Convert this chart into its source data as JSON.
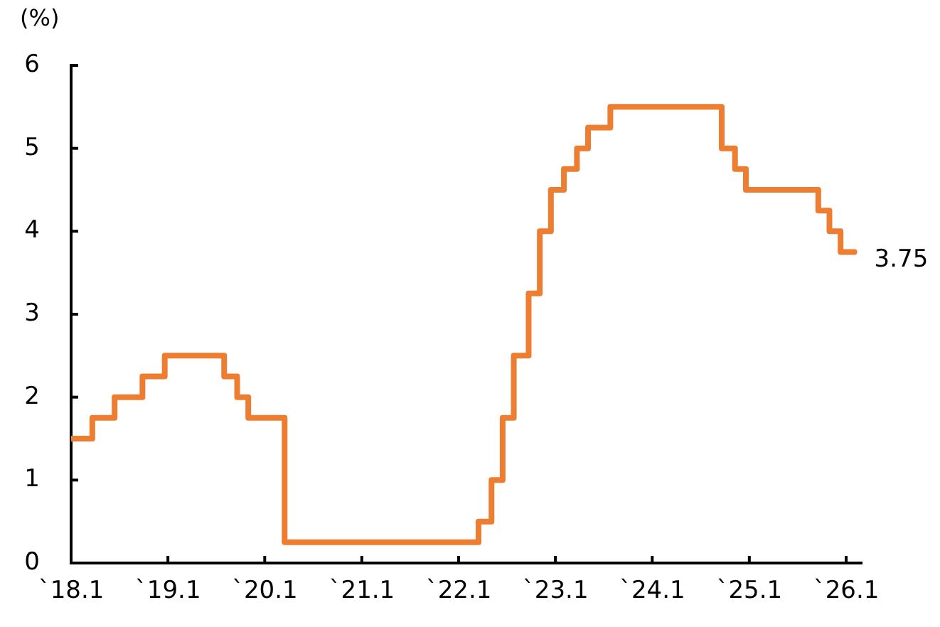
{
  "chart_data": {
    "type": "step",
    "ylabel": "(%)",
    "x": [
      "2018-01-01",
      "2018-03-22",
      "2018-06-14",
      "2018-09-27",
      "2018-12-20",
      "2019-08-01",
      "2019-09-19",
      "2019-10-31",
      "2020-03-16",
      "2022-03-17",
      "2022-05-05",
      "2022-06-16",
      "2022-07-28",
      "2022-09-22",
      "2022-11-03",
      "2022-12-15",
      "2023-02-02",
      "2023-03-23",
      "2023-05-04",
      "2023-07-27",
      "2024-09-19",
      "2024-11-08",
      "2024-12-19",
      "2025-09-18",
      "2025-10-30",
      "2025-12-11",
      "2026-02-01"
    ],
    "series": [
      {
        "color": "#ed7d31",
        "values": [
          1.5,
          1.75,
          2.0,
          2.25,
          2.5,
          2.25,
          2.0,
          1.75,
          0.25,
          0.5,
          1.0,
          1.75,
          2.5,
          3.25,
          4.0,
          4.5,
          4.75,
          5.0,
          5.25,
          5.5,
          5.0,
          4.75,
          4.5,
          4.25,
          4.0,
          3.75,
          3.75
        ]
      }
    ],
    "xlim": [
      "2018-01-01",
      "2026-03-01"
    ],
    "xticks": [
      {
        "value": "2018-01-01",
        "label": "`18.1"
      },
      {
        "value": "2019-01-01",
        "label": "`19.1"
      },
      {
        "value": "2020-01-01",
        "label": "`20.1"
      },
      {
        "value": "2021-01-01",
        "label": "`21.1"
      },
      {
        "value": "2022-01-01",
        "label": "`22.1"
      },
      {
        "value": "2023-01-01",
        "label": "`23.1"
      },
      {
        "value": "2024-01-01",
        "label": "`24.1"
      },
      {
        "value": "2025-01-01",
        "label": "`25.1"
      },
      {
        "value": "2026-01-01",
        "label": "`26.1"
      }
    ],
    "ylim": [
      0,
      6
    ],
    "yticks": [
      0,
      1,
      2,
      3,
      4,
      5,
      6
    ],
    "grid": false,
    "legend": false,
    "annotations": [
      {
        "text": "3.75",
        "x": "2026-02-01",
        "y": 3.75
      }
    ]
  }
}
